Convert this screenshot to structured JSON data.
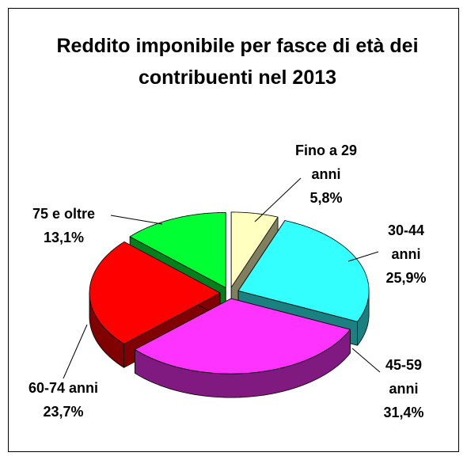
{
  "chart_data": {
    "type": "pie3d",
    "title": "Reddito imponibile per fasce di età dei contribuenti nel 2013",
    "categories": [
      "Fino a 29 anni",
      "30-44 anni",
      "45-59 anni",
      "60-74 anni",
      "75 e oltre"
    ],
    "values": [
      5.8,
      25.9,
      31.4,
      23.7,
      13.1
    ],
    "value_labels": [
      "5,8%",
      "25,9%",
      "31,4%",
      "23,7%",
      "13,1%"
    ],
    "colors": [
      "#ffffc0",
      "#33ffff",
      "#ff33ff",
      "#ff0000",
      "#00ff33"
    ]
  }
}
